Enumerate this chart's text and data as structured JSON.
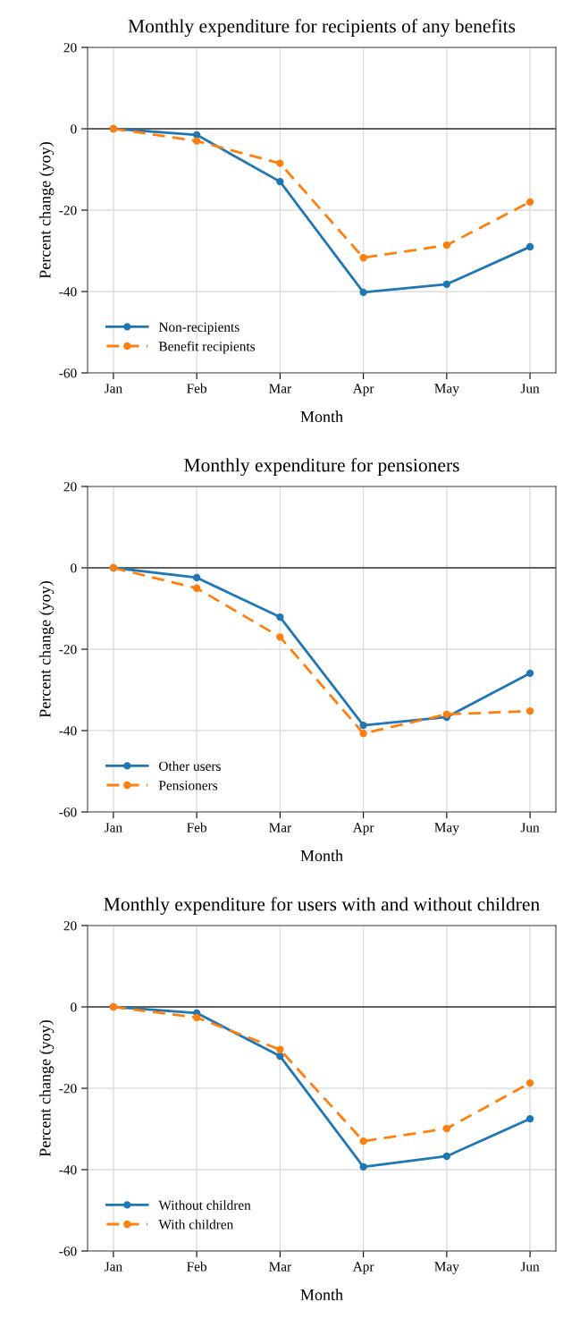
{
  "chart_data": [
    {
      "type": "line",
      "title": "Monthly expenditure for recipients of any benefits",
      "xlabel": "Month",
      "ylabel": "Percent change (yoy)",
      "categories": [
        "Jan",
        "Feb",
        "Mar",
        "Apr",
        "May",
        "Jun"
      ],
      "ylim": [
        -60,
        20
      ],
      "yticks": [
        -60,
        -40,
        -20,
        0,
        20
      ],
      "grid": true,
      "legend": "bottom left",
      "marker": "circle",
      "ref_lines": [
        {
          "axis": "y",
          "value": 0,
          "color": "#333333"
        }
      ],
      "series": [
        {
          "name": "Non-recipients",
          "color": "#1f77b4",
          "line_style": "solid",
          "values": [
            0,
            -1.5,
            -13,
            -40.2,
            -38.2,
            -29
          ]
        },
        {
          "name": "Benefit recipients",
          "color": "#ff7f0e",
          "line_style": "dashed",
          "values": [
            0,
            -3,
            -8.5,
            -31.7,
            -28.6,
            -18
          ]
        }
      ]
    },
    {
      "type": "line",
      "title": "Monthly expenditure for pensioners",
      "xlabel": "Month",
      "ylabel": "Percent change (yoy)",
      "categories": [
        "Jan",
        "Feb",
        "Mar",
        "Apr",
        "May",
        "Jun"
      ],
      "ylim": [
        -60,
        20
      ],
      "yticks": [
        -60,
        -40,
        -20,
        0,
        20
      ],
      "grid": true,
      "legend": "bottom left",
      "marker": "circle",
      "ref_lines": [
        {
          "axis": "y",
          "value": 0,
          "color": "#333333"
        }
      ],
      "series": [
        {
          "name": "Other users",
          "color": "#1f77b4",
          "line_style": "solid",
          "values": [
            0,
            -2.4,
            -12.1,
            -38.7,
            -36.7,
            -25.9
          ]
        },
        {
          "name": "Pensioners",
          "color": "#ff7f0e",
          "line_style": "dashed",
          "values": [
            0,
            -5,
            -17,
            -40.7,
            -36,
            -35.2
          ]
        }
      ]
    },
    {
      "type": "line",
      "title": "Monthly expenditure for users with and without children",
      "xlabel": "Month",
      "ylabel": "Percent change (yoy)",
      "categories": [
        "Jan",
        "Feb",
        "Mar",
        "Apr",
        "May",
        "Jun"
      ],
      "ylim": [
        -60,
        20
      ],
      "yticks": [
        -60,
        -40,
        -20,
        0,
        20
      ],
      "grid": true,
      "legend": "bottom left",
      "marker": "circle",
      "ref_lines": [
        {
          "axis": "y",
          "value": 0,
          "color": "#333333"
        }
      ],
      "series": [
        {
          "name": "Without children",
          "color": "#1f77b4",
          "line_style": "solid",
          "values": [
            0,
            -1.5,
            -12.1,
            -39.3,
            -36.7,
            -27.5
          ]
        },
        {
          "name": "With children",
          "color": "#ff7f0e",
          "line_style": "dashed",
          "values": [
            0,
            -2.6,
            -10.5,
            -33,
            -29.9,
            -18.7
          ]
        }
      ]
    }
  ]
}
